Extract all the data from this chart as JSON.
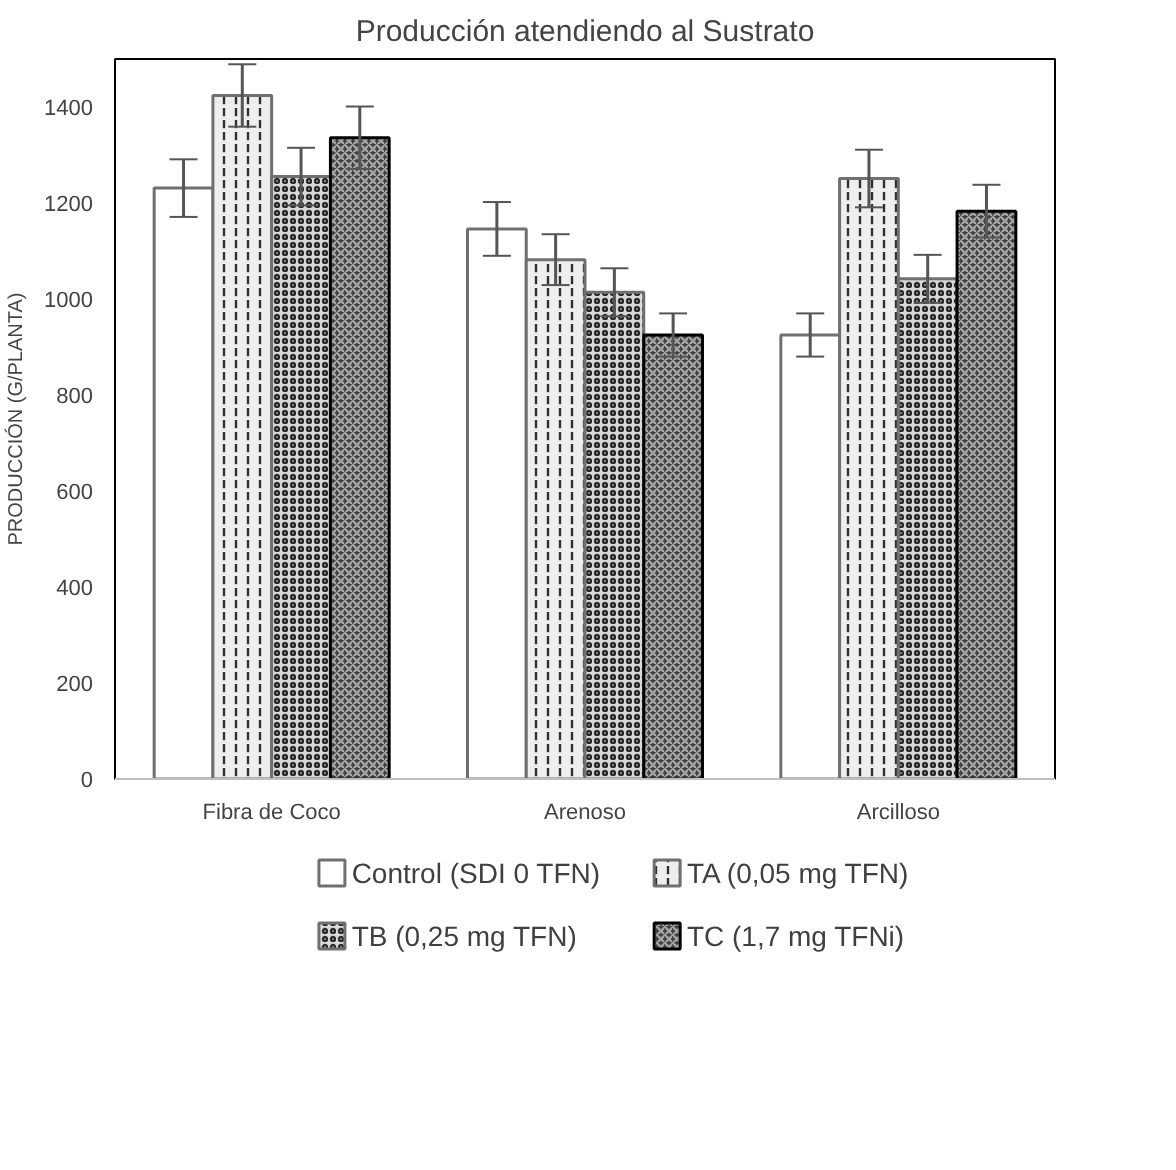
{
  "chart_data": {
    "type": "bar",
    "title": "Producción atendiendo al Sustrato",
    "ylabel": "PRODUCCIÓN (G/PLANTA)",
    "categories": [
      "Fibra de Coco",
      "Arenoso",
      "Arcilloso"
    ],
    "series": [
      {
        "name": "Control (SDI 0 TFN)",
        "color": "#ffffff",
        "values": [
          1231,
          1146,
          925
        ],
        "errors": [
          60,
          56,
          45
        ]
      },
      {
        "name": "TA (0,05 mg TFN)",
        "color": "#eeeeee",
        "values": [
          1424,
          1082,
          1251
        ],
        "errors": [
          65,
          53,
          60
        ]
      },
      {
        "name": "TB (0,25 mg TFN)",
        "color": "#d9d9d9",
        "values": [
          1255,
          1014,
          1042
        ],
        "errors": [
          60,
          50,
          50
        ]
      },
      {
        "name": "TC (1,7 mg TFNi)",
        "color": "#404040",
        "values": [
          1336,
          925,
          1183
        ],
        "errors": [
          65,
          45,
          55
        ]
      }
    ],
    "ylim": [
      0,
      1500
    ],
    "yticks": [
      0,
      200,
      400,
      600,
      800,
      1000,
      1200,
      1400
    ],
    "grid": false,
    "legend": "bottom"
  }
}
